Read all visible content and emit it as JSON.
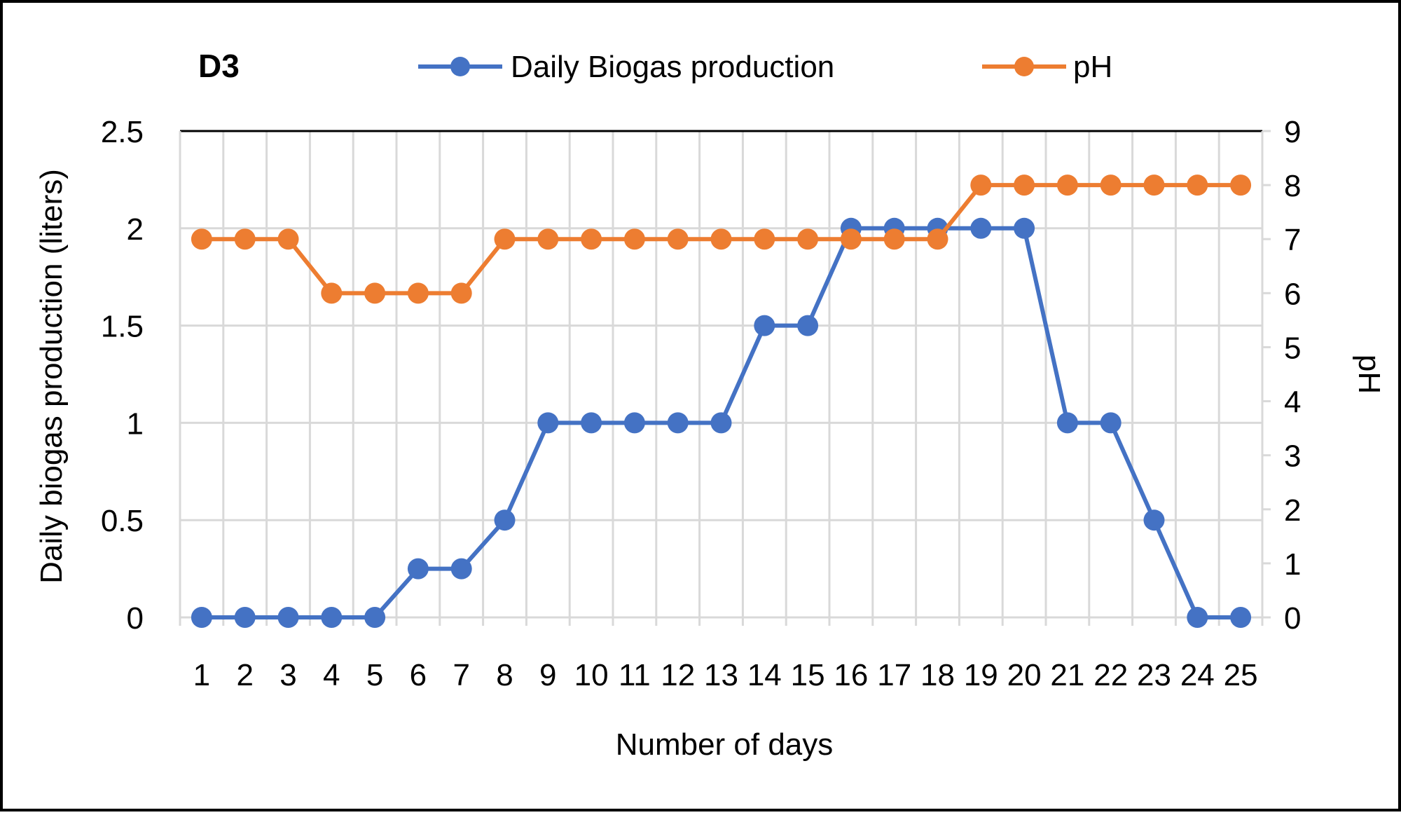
{
  "chart_data": {
    "type": "line",
    "title": "D3",
    "xlabel": "Number of days",
    "ylabel": "Daily biogas production (liters)",
    "y2label": "pH",
    "categories": [
      "1",
      "2",
      "3",
      "4",
      "5",
      "6",
      "7",
      "8",
      "9",
      "10",
      "11",
      "12",
      "13",
      "14",
      "15",
      "16",
      "17",
      "18",
      "19",
      "20",
      "21",
      "22",
      "23",
      "24",
      "25"
    ],
    "ylim": [
      0,
      2.5
    ],
    "y2lim": [
      0,
      9
    ],
    "yticks": [
      "0",
      "0.5",
      "1",
      "1.5",
      "2",
      "2.5"
    ],
    "y2ticks": [
      "0",
      "1",
      "2",
      "3",
      "4",
      "5",
      "6",
      "7",
      "8",
      "9"
    ],
    "grid": true,
    "legend_position": "top",
    "series": [
      {
        "name": "Daily Biogas production",
        "axis": "left",
        "color": "#4472C4",
        "values": [
          0,
          0,
          0,
          0,
          0,
          0.25,
          0.25,
          0.5,
          1,
          1,
          1,
          1,
          1,
          1.5,
          1.5,
          2,
          2,
          2,
          2,
          2,
          1,
          1,
          0.5,
          0,
          0
        ]
      },
      {
        "name": "pH",
        "axis": "right",
        "color": "#ED7D31",
        "values": [
          7,
          7,
          7,
          6,
          6,
          6,
          6,
          7,
          7,
          7,
          7,
          7,
          7,
          7,
          7,
          7,
          7,
          7,
          8,
          8,
          8,
          8,
          8,
          8,
          8
        ]
      }
    ]
  }
}
